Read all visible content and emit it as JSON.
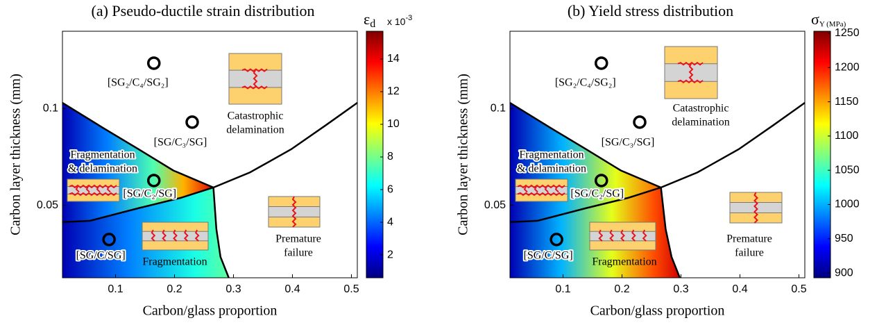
{
  "chart_data": [
    {
      "type": "contour",
      "title": "(a) Pseudo-ductile strain distribution",
      "xlabel": "Carbon/glass proportion",
      "ylabel": "Carbon layer thickness (mm)",
      "xlim": [
        0.01,
        0.51
      ],
      "ylim": [
        0.0125,
        0.14
      ],
      "xticks": [
        0.1,
        0.2,
        0.3,
        0.4,
        0.5
      ],
      "yticks": [
        0.05,
        0.1
      ],
      "colorbar": {
        "symbol": "ε",
        "subscript": "d",
        "multiplier": "x 10",
        "exponent": "-3",
        "lim": [
          0.6,
          15.7
        ],
        "ticks": [
          2,
          4,
          6,
          8,
          10,
          12,
          14
        ]
      },
      "points": {
        "labels": [
          "[SG₂/C₄/SG₂]",
          "[SG/C₃/SG]",
          "[SG/C₂/SG]",
          "[SG/C/SG]"
        ],
        "x": [
          0.165,
          0.23,
          0.165,
          0.089
        ],
        "y": [
          0.1235,
          0.093,
          0.0628,
          0.0323
        ]
      },
      "regions": [
        [
          "Catastrophic",
          "delamination"
        ],
        [
          "Fragmentation",
          "& delamination"
        ],
        [
          "Fragmentation"
        ],
        [
          "Premature",
          "failure"
        ]
      ],
      "boundaries": [
        {
          "x": [
            0.01,
            0.0806,
            0.139,
            0.198,
            0.266
          ],
          "y": [
            0.103,
            0.0897,
            0.079,
            0.068,
            0.0592
          ]
        },
        {
          "x": [
            0.266,
            0.328,
            0.398,
            0.457,
            0.51
          ],
          "y": [
            0.0592,
            0.067,
            0.079,
            0.0915,
            0.103
          ]
        },
        {
          "x": [
            0.01,
            0.057,
            0.139,
            0.21,
            0.266
          ],
          "y": [
            0.0413,
            0.042,
            0.0485,
            0.0538,
            0.0592
          ]
        },
        {
          "x": [
            0.266,
            0.271,
            0.278,
            0.292
          ],
          "y": [
            0.0592,
            0.0377,
            0.0233,
            0.0125
          ]
        }
      ]
    },
    {
      "type": "contour",
      "title": "(b) Yield stress distribution",
      "xlabel": "Carbon/glass proportion",
      "ylabel": "Carbon layer thickness (mm)",
      "xlim": [
        0.01,
        0.51
      ],
      "ylim": [
        0.0125,
        0.14
      ],
      "xticks": [
        0.1,
        0.2,
        0.3,
        0.4,
        0.5
      ],
      "yticks": [
        0.05,
        0.1
      ],
      "colorbar": {
        "symbol": "σ",
        "subscript": "Y (MPa)",
        "lim": [
          893,
          1253
        ],
        "ticks": [
          900,
          950,
          1000,
          1050,
          1100,
          1150,
          1200,
          1250
        ]
      },
      "points": {
        "labels": [
          "[SG₂/C₄/SG₂]",
          "[SG/C₃/SG]",
          "[SG/C₂/SG]",
          "[SG/C/SG]"
        ],
        "x": [
          0.165,
          0.23,
          0.165,
          0.089
        ],
        "y": [
          0.1235,
          0.093,
          0.0628,
          0.0323
        ]
      },
      "regions": [
        [
          "Catastrophic",
          "delamination"
        ],
        [
          "Fragmentation",
          "& delamination"
        ],
        [
          "Fragmentation"
        ],
        [
          "Premature",
          "failure"
        ]
      ],
      "boundaries": [
        {
          "x": [
            0.01,
            0.0806,
            0.139,
            0.198,
            0.266
          ],
          "y": [
            0.103,
            0.0897,
            0.079,
            0.068,
            0.0592
          ]
        },
        {
          "x": [
            0.266,
            0.328,
            0.398,
            0.457,
            0.51
          ],
          "y": [
            0.0592,
            0.067,
            0.079,
            0.0915,
            0.103
          ]
        },
        {
          "x": [
            0.01,
            0.057,
            0.139,
            0.21,
            0.266
          ],
          "y": [
            0.0413,
            0.042,
            0.0485,
            0.0538,
            0.0592
          ]
        },
        {
          "x": [
            0.266,
            0.274,
            0.284,
            0.298
          ],
          "y": [
            0.0592,
            0.0377,
            0.0233,
            0.0125
          ]
        }
      ]
    }
  ]
}
